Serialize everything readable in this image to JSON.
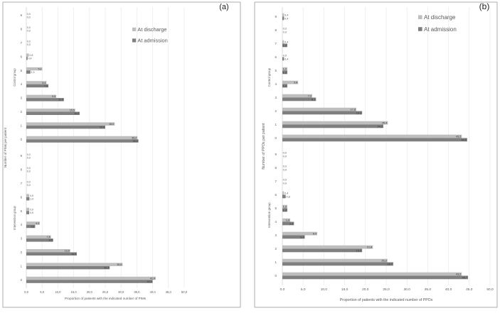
{
  "chart_data": [
    {
      "type": "bar",
      "orientation": "horizontal",
      "panel_label": "(a)",
      "xlabel": "Proportion of patients with the indicated number of PIMs",
      "ylabel": "Number of PIMs per patient",
      "group_labels": [
        "Control group",
        "Intervention group"
      ],
      "xlim": [
        0,
        50
      ],
      "xticks": [
        "0,0",
        "5,0",
        "10,0",
        "15,0",
        "20,0",
        "25,0",
        "30,0",
        "35,0",
        "40,0",
        "45,0",
        "50,0"
      ],
      "legend": [
        "At discharge",
        "At admission"
      ],
      "groups": [
        {
          "name": "Control group",
          "categories": [
            "9",
            "8",
            "7",
            "6",
            "5",
            "4",
            "3",
            "2",
            "1",
            "0"
          ],
          "series": [
            {
              "name": "At discharge",
              "values": [
                0.0,
                0.0,
                0.0,
                0.8,
                5.1,
                6.4,
                9.5,
                15.5,
                28.0,
                35.2
              ],
              "labels": [
                "0,0",
                "0,0",
                "0,0",
                "0,8",
                "5,1",
                "6,4",
                "9,5",
                "15,5",
                "28,0",
                "35,2"
              ]
            },
            {
              "name": "At admission",
              "values": [
                0.0,
                0.0,
                0.0,
                0.4,
                1.3,
                7.0,
                11.9,
                16.9,
                25.0,
                35.5
              ],
              "labels": [
                "0,0",
                "0,0",
                "0,0",
                "0,4",
                "1,3",
                "7,0",
                "11,9",
                "16,9",
                "25,0",
                "35,5"
              ]
            }
          ]
        },
        {
          "name": "Intervention group",
          "categories": [
            "9",
            "8",
            "7",
            "6",
            "5",
            "4",
            "3",
            "2",
            "1",
            "0"
          ],
          "series": [
            {
              "name": "At discharge",
              "values": [
                0.0,
                0.0,
                0.0,
                0.9,
                0.9,
                4.3,
                7.8,
                13.9,
                30.5,
                41.0
              ],
              "labels": [
                "0,0",
                "0,0",
                "0,0",
                "0,9",
                "0,9",
                "4,3",
                "7,8",
                "13,9",
                "30,5",
                "41,0"
              ]
            },
            {
              "name": "At admission",
              "values": [
                0.0,
                0.0,
                0.0,
                1.0,
                0.9,
                2.8,
                8.5,
                16.0,
                26.4,
                40.0
              ],
              "labels": [
                "0,0",
                "0,0",
                "0,0",
                "1,0",
                "0,9",
                "2,8",
                "8,5",
                "16,0",
                "26,4",
                "40,0"
              ]
            }
          ]
        }
      ]
    },
    {
      "type": "bar",
      "orientation": "horizontal",
      "panel_label": "(b)",
      "xlabel": "Proportion of patients with the indicated number of PPOs",
      "ylabel": "Number of PPOs per patient",
      "group_labels": [
        "Control group",
        "Intervention group"
      ],
      "xlim": [
        0,
        50
      ],
      "xticks": [
        "0,0",
        "5,0",
        "10,0",
        "15,0",
        "20,0",
        "25,0",
        "30,0",
        "35,0",
        "40,0",
        "45,0",
        "50,0"
      ],
      "legend": [
        "At discharge",
        "At admission"
      ],
      "groups": [
        {
          "name": "Control group",
          "categories": [
            "9",
            "8",
            "7",
            "6",
            "5",
            "4",
            "3",
            "2",
            "1",
            "0"
          ],
          "series": [
            {
              "name": "At discharge",
              "values": [
                0.4,
                0.0,
                0.4,
                0.0,
                1.2,
                3.8,
                7.2,
                17.8,
                25.4,
                43.2
              ],
              "labels": [
                "0,4",
                "0,0",
                "0,4",
                "0,0",
                "1,2",
                "3,8",
                "7,2",
                "17,8",
                "25,4",
                "43,2"
              ]
            },
            {
              "name": "At admission",
              "values": [
                0.4,
                0.0,
                1.2,
                0.4,
                1.2,
                1.2,
                8.1,
                19.2,
                24.3,
                44.5
              ],
              "labels": [
                "0,4",
                "0,0",
                "1,2",
                "0,4",
                "1,2",
                "1,2",
                "8,1",
                "19,2",
                "24,3",
                "44,5"
              ]
            }
          ]
        },
        {
          "name": "Intervention group",
          "categories": [
            "9",
            "8",
            "7",
            "6",
            "5",
            "4",
            "3",
            "2",
            "1",
            "0"
          ],
          "series": [
            {
              "name": "At discharge",
              "values": [
                0.0,
                0.0,
                0.0,
                0.4,
                1.2,
                1.9,
                8.4,
                21.8,
                25.3,
                43.2
              ],
              "labels": [
                "0,0",
                "0,0",
                "0,0",
                "0,4",
                "1,2",
                "1,9",
                "8,4",
                "21,8",
                "25,3",
                "43,2"
              ]
            },
            {
              "name": "At admission",
              "values": [
                0.0,
                0.0,
                0.0,
                0.8,
                1.2,
                2.8,
                5.4,
                19.2,
                26.7,
                44.7
              ],
              "labels": [
                "0,0",
                "0,0",
                "0,0",
                "0,8",
                "1,2",
                "2,8",
                "5,4",
                "19,2",
                "26,7",
                "44,7"
              ]
            }
          ]
        }
      ]
    }
  ],
  "colors": {
    "discharge": "#bebebe",
    "admission": "#7f7f7f",
    "grid": "#e6e6e6",
    "frame": "#9a9a9a",
    "text": "#595959"
  }
}
